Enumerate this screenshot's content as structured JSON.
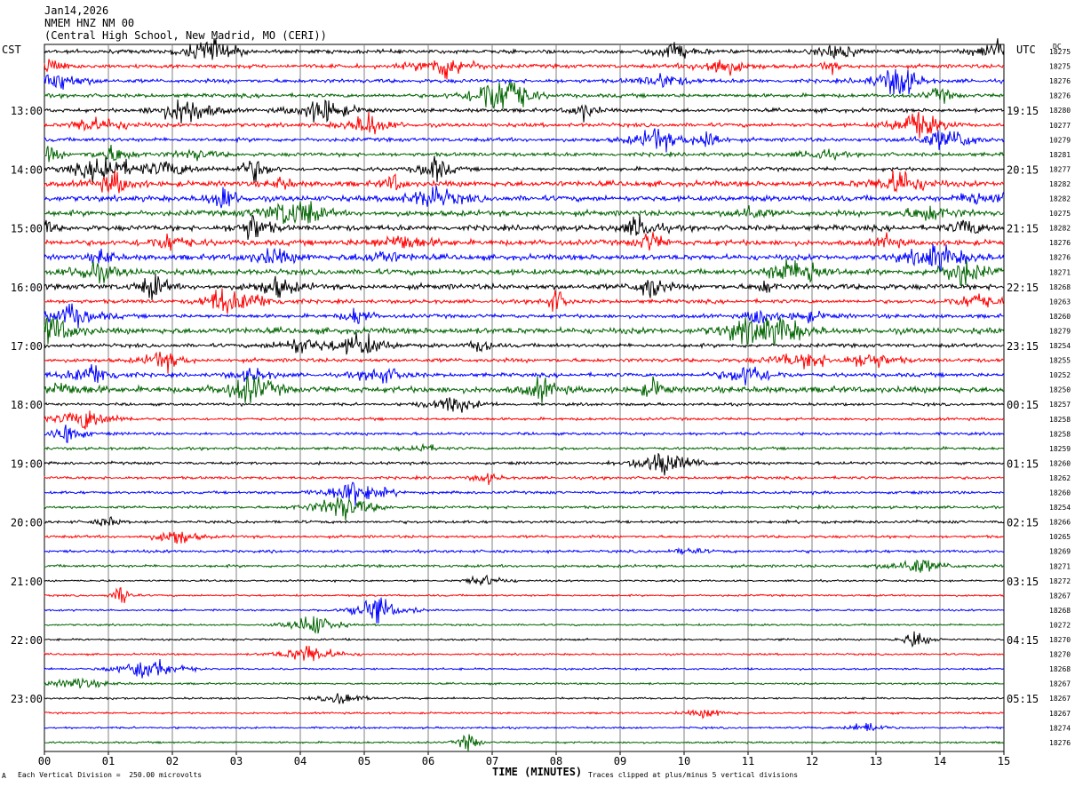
{
  "header": {
    "date": "Jan14,2026",
    "station": "NMEM HNZ NM 00",
    "location": "(Central High School, New Madrid, MO (CERI))"
  },
  "left_timezone": "CST",
  "right_timezone": "UTC",
  "dc_label": "DC",
  "footer": {
    "scale_note": "Each Vertical Division =  250.00 microvolts",
    "clip_note": "Traces clipped at plus/minus 5 vertical divisions",
    "corner_mark": "A"
  },
  "colors": {
    "cycle": [
      "#000000",
      "#ff0000",
      "#0000ff",
      "#006400"
    ],
    "grid": "#808080"
  },
  "chart_data": {
    "type": "line",
    "title": "NMEM HNZ NM 00",
    "xlabel": "TIME (MINUTES)",
    "xlim": [
      0,
      15
    ],
    "x_tick_labels": [
      "00",
      "01",
      "02",
      "03",
      "04",
      "05",
      "06",
      "07",
      "08",
      "09",
      "10",
      "11",
      "12",
      "13",
      "14",
      "15"
    ],
    "left_hour_labels": [
      "13:00",
      "14:00",
      "15:00",
      "16:00",
      "17:00",
      "18:00",
      "19:00",
      "20:00",
      "21:00",
      "22:00",
      "23:00"
    ],
    "right_hour_labels": [
      "19:15",
      "20:15",
      "21:15",
      "22:15",
      "23:15",
      "00:15",
      "01:15",
      "02:15",
      "03:15",
      "04:15",
      "05:15"
    ],
    "dc_offsets": [
      "18275",
      "18275",
      "18276",
      "18276",
      "18280",
      "10277",
      "10279",
      "18281",
      "18277",
      "18282",
      "18282",
      "10275",
      "18282",
      "18276",
      "18276",
      "18271",
      "18268",
      "10263",
      "18260",
      "18279",
      "18254",
      "18255",
      "10252",
      "18250",
      "18257",
      "18258",
      "18258",
      "18259",
      "18260",
      "18262",
      "18260",
      "18254",
      "18266",
      "10265",
      "18269",
      "18271",
      "18272",
      "18267",
      "18268",
      "10272",
      "18270",
      "18270",
      "18268",
      "18267",
      "18267",
      "18267",
      "18274",
      "18276"
    ],
    "trace_count": 48,
    "trace_minutes": 15,
    "amplitude_unit": "microvolts per vertical division",
    "amplitude_per_division": 250.0,
    "clip_divisions": 5
  }
}
